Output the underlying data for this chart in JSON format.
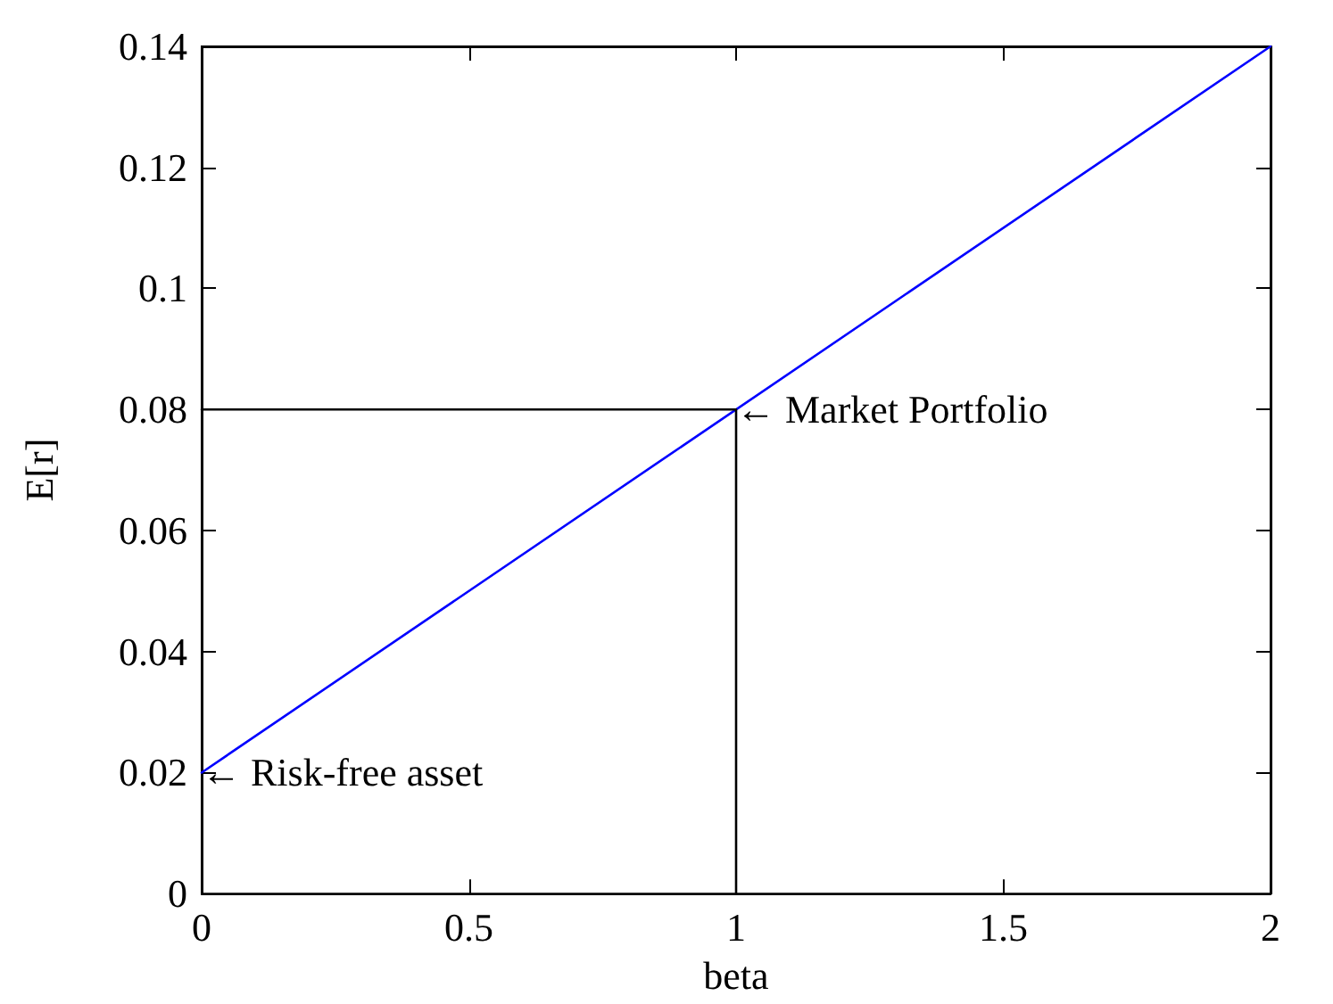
{
  "chart_data": {
    "type": "line",
    "xlabel": "beta",
    "ylabel": "E[r]",
    "xlim": [
      0,
      2
    ],
    "ylim": [
      0,
      0.14
    ],
    "xticks": [
      0,
      0.5,
      1,
      1.5,
      2
    ],
    "yticks": [
      0,
      0.02,
      0.04,
      0.06,
      0.08,
      0.1,
      0.12,
      0.14
    ],
    "marker": "none",
    "line_style": "solid",
    "series": [
      {
        "color": "#0000ff",
        "x": [
          0,
          2
        ],
        "values": [
          0.02,
          0.14
        ]
      },
      {
        "color": "#000000",
        "x": [
          0,
          1,
          1
        ],
        "values": [
          0.08,
          0.08,
          0
        ]
      }
    ],
    "annotations": [
      {
        "text": "← Market Portfolio",
        "x": 1,
        "y": 0.08
      },
      {
        "text": "← Risk-free asset",
        "x": 0,
        "y": 0.02
      }
    ]
  }
}
